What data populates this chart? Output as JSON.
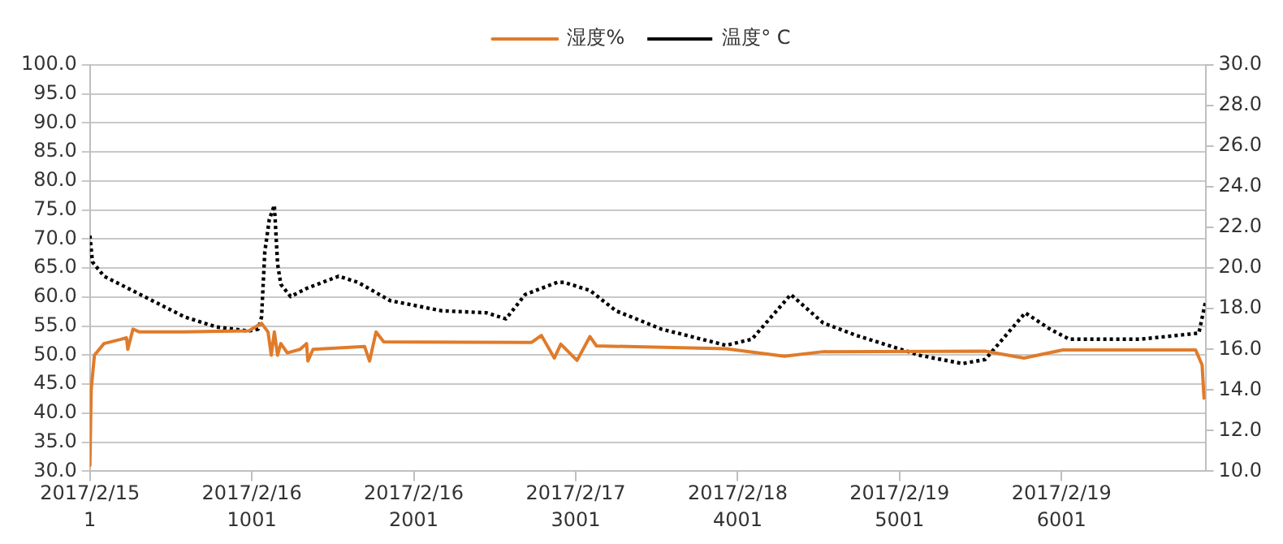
{
  "chart_data": {
    "type": "line",
    "legend": "top",
    "grid": "y",
    "marker": "none",
    "xlim": [
      1,
      6890
    ],
    "xticks": [
      1,
      1001,
      2001,
      3001,
      4001,
      5001,
      6001
    ],
    "annotations": [
      "2017/2/15",
      "2017/2/16",
      "2017/2/16",
      "2017/2/17",
      "2017/2/18",
      "2017/2/19",
      "2017/2/19"
    ],
    "ylim": [
      30,
      100
    ],
    "yticks": [
      {
        "value": 30,
        "label": "30.0"
      },
      {
        "value": 35,
        "label": "35.0"
      },
      {
        "value": 40,
        "label": "40.0"
      },
      {
        "value": 45,
        "label": "45.0"
      },
      {
        "value": 50,
        "label": "50.0"
      },
      {
        "value": 55,
        "label": "55.0"
      },
      {
        "value": 60,
        "label": "60.0"
      },
      {
        "value": 65,
        "label": "65.0"
      },
      {
        "value": 70,
        "label": "70.0"
      },
      {
        "value": 75,
        "label": "75.0"
      },
      {
        "value": 80,
        "label": "80.0"
      },
      {
        "value": 85,
        "label": "85.0"
      },
      {
        "value": 90,
        "label": "90.0"
      },
      {
        "value": 95,
        "label": "95.0"
      },
      {
        "value": 100,
        "label": "100.0"
      }
    ],
    "y2lim": [
      10,
      30
    ],
    "y2ticks": [
      {
        "value": 10,
        "label": "10.0"
      },
      {
        "value": 12,
        "label": "12.0"
      },
      {
        "value": 14,
        "label": "14.0"
      },
      {
        "value": 16,
        "label": "16.0"
      },
      {
        "value": 18,
        "label": "18.0"
      },
      {
        "value": 20,
        "label": "20.0"
      },
      {
        "value": 22,
        "label": "22.0"
      },
      {
        "value": 24,
        "label": "24.0"
      },
      {
        "value": 26,
        "label": "26.0"
      },
      {
        "value": 28,
        "label": "28.0"
      },
      {
        "value": 30,
        "label": "30.0"
      }
    ],
    "series": [
      {
        "name": "湿度%",
        "color": "#e07b2a",
        "line_style": "solid",
        "x": [
          1,
          9,
          29,
          88,
          188,
          227,
          235,
          267,
          307,
          585,
          982,
          1061,
          1101,
          1121,
          1140,
          1160,
          1180,
          1220,
          1299,
          1339,
          1347,
          1379,
          1697,
          1728,
          1768,
          1815,
          2729,
          2789,
          2869,
          2909,
          3009,
          3089,
          3129,
          3929,
          4289,
          4529,
          5529,
          5769,
          6009,
          6829,
          6869,
          6881
        ],
        "values": [
          31,
          44,
          50,
          52,
          52.7,
          53,
          51,
          54.5,
          54,
          54,
          54.2,
          55.5,
          54,
          50,
          54,
          50,
          52,
          50.4,
          51,
          52,
          49,
          51,
          51.5,
          49,
          54,
          52.3,
          52.2,
          53.4,
          49.5,
          51.9,
          49.1,
          53.2,
          51.6,
          51.1,
          49.8,
          50.6,
          50.7,
          49.5,
          50.9,
          50.9,
          48.3,
          42.6
        ]
      },
      {
        "name": "温度° C",
        "color": "#000000",
        "axis": "y2",
        "line_style": "dotted",
        "x": [
          1,
          17,
          88,
          188,
          386,
          585,
          783,
          982,
          1041,
          1061,
          1081,
          1109,
          1140,
          1160,
          1180,
          1240,
          1339,
          1537,
          1656,
          1855,
          2173,
          2450,
          2570,
          2689,
          2887,
          2929,
          3089,
          3249,
          3529,
          3929,
          4089,
          4329,
          4529,
          4729,
          5129,
          5389,
          5529,
          5777,
          5929,
          6049,
          6489,
          6729,
          6849,
          6889
        ],
        "values": [
          21.6,
          20.3,
          19.6,
          19.2,
          18.4,
          17.6,
          17.1,
          16.9,
          17.0,
          17.6,
          20.8,
          22.4,
          23.1,
          20.2,
          19.2,
          18.6,
          19.0,
          19.6,
          19.3,
          18.4,
          17.9,
          17.8,
          17.5,
          18.7,
          19.3,
          19.3,
          18.9,
          17.9,
          17.0,
          16.2,
          16.5,
          18.7,
          17.3,
          16.7,
          15.7,
          15.3,
          15.5,
          17.8,
          17.0,
          16.5,
          16.5,
          16.7,
          16.8,
          18.3
        ]
      }
    ]
  }
}
